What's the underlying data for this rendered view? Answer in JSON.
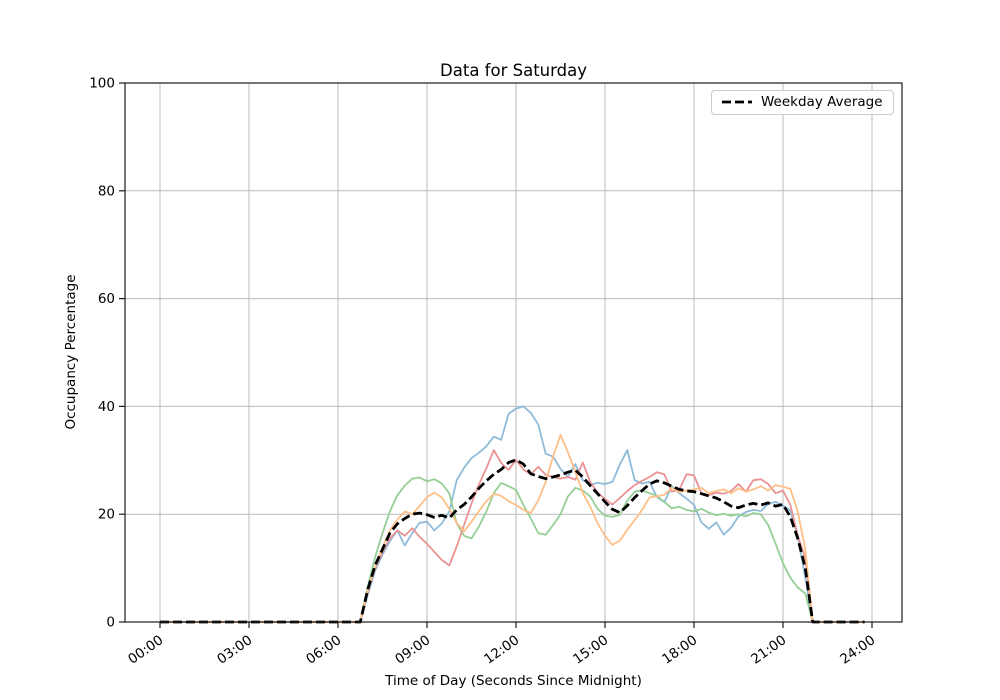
{
  "chart_data": {
    "type": "line",
    "title": "Data for Saturday",
    "xlabel": "Time of Day (Seconds Since Midnight)",
    "ylabel": "Occupancy Percentage",
    "grid": true,
    "ylim": [
      0,
      100
    ],
    "yticks": [
      0,
      20,
      40,
      60,
      80,
      100
    ],
    "x_tick_hours": [
      0,
      3,
      6,
      9,
      12,
      15,
      18,
      21,
      24
    ],
    "x_tick_labels": [
      "00:00",
      "03:00",
      "06:00",
      "09:00",
      "12:00",
      "15:00",
      "18:00",
      "21:00",
      "24:00"
    ],
    "x_start_hour": 0,
    "x_step_minutes": 15,
    "legend": {
      "position": "upper right",
      "entries": [
        "Weekday Average"
      ]
    },
    "colors": {
      "grid": "#bbbbbb",
      "spine": "#1a1a1a",
      "average": "#000000",
      "blue": "#8fbbda",
      "orange": "#ffbf86",
      "green": "#95cf95",
      "red": "#ea9394"
    },
    "series": [
      {
        "name": "saturday-blue",
        "color": "#8fbbda",
        "style": "solid",
        "values": [
          0,
          0,
          0,
          0,
          0,
          0,
          0,
          0,
          0,
          0,
          0,
          0,
          0,
          0,
          0,
          0,
          0,
          0,
          0,
          0,
          0,
          0,
          0,
          0,
          0,
          0,
          0,
          0,
          5,
          9.5,
          12.5,
          15,
          17,
          14.2,
          16.5,
          18.4,
          18.6,
          17,
          18.3,
          20.5,
          26.3,
          28.6,
          30.4,
          31.4,
          32.6,
          34.4,
          33.8,
          38.6,
          39.6,
          40,
          38.8,
          36.6,
          31.2,
          30.7,
          28.4,
          27,
          29.3,
          26.3,
          25.5,
          25.8,
          25.6,
          26,
          29.2,
          31.9,
          26.3,
          25.7,
          26,
          23.2,
          22.2,
          25.2,
          23.9,
          22.9,
          21.7,
          18.5,
          17.3,
          18.5,
          16.2,
          17.5,
          19.6,
          20.4,
          20.8,
          20.6,
          21.9,
          22.3,
          21.6,
          20.7,
          15.8,
          8.2,
          0,
          0,
          0,
          0,
          0,
          0,
          0,
          0
        ]
      },
      {
        "name": "saturday-green",
        "color": "#95cf95",
        "style": "solid",
        "values": [
          0,
          0,
          0,
          0,
          0,
          0,
          0,
          0,
          0,
          0,
          0,
          0,
          0,
          0,
          0,
          0,
          0,
          0,
          0,
          0,
          0,
          0,
          0,
          0,
          0,
          0,
          0,
          0,
          6.5,
          12,
          16.5,
          20.5,
          23.5,
          25.3,
          26.6,
          26.8,
          26.1,
          26.5,
          25.7,
          23.9,
          18.3,
          16,
          15.5,
          17.7,
          20.5,
          23.9,
          25.8,
          25.2,
          24.5,
          21.7,
          19.2,
          16.5,
          16.2,
          18,
          20,
          23.3,
          24.9,
          24.4,
          23.3,
          21,
          19.7,
          19.5,
          19.9,
          22.5,
          24.2,
          24.4,
          23.9,
          23.4,
          22.3,
          21.1,
          21.4,
          20.8,
          20.5,
          21,
          20.3,
          19.8,
          20.1,
          19.7,
          20,
          19.6,
          20.2,
          20,
          18,
          14.5,
          10.9,
          8.2,
          6.4,
          5.3,
          0,
          0,
          0,
          0,
          0,
          0,
          0,
          0
        ]
      },
      {
        "name": "saturday-red",
        "color": "#ea9394",
        "style": "solid",
        "values": [
          0,
          0,
          0,
          0,
          0,
          0,
          0,
          0,
          0,
          0,
          0,
          0,
          0,
          0,
          0,
          0,
          0,
          0,
          0,
          0,
          0,
          0,
          0,
          0,
          0,
          0,
          0,
          0,
          5.5,
          10,
          13,
          15.5,
          17,
          16,
          17.4,
          15.8,
          14.5,
          13,
          11.5,
          10.5,
          14,
          18,
          22,
          25.5,
          28.5,
          31.9,
          29.5,
          28.2,
          30.1,
          28.3,
          27.4,
          28.8,
          27.3,
          26.9,
          26.6,
          26.9,
          26.4,
          29.6,
          26,
          24,
          22.8,
          21.8,
          23,
          24.3,
          25.4,
          26.2,
          26.9,
          27.8,
          27.4,
          24.2,
          24.5,
          27.4,
          27.2,
          23.9,
          23.5,
          24,
          23.8,
          24.3,
          25.6,
          24.2,
          26.3,
          26.5,
          25.6,
          23.9,
          24.4,
          21.7,
          16,
          11.8,
          0,
          0,
          0,
          0,
          0,
          0,
          0,
          0
        ]
      },
      {
        "name": "saturday-orange",
        "color": "#ffbf86",
        "style": "solid",
        "values": [
          0,
          0,
          0,
          0,
          0,
          0,
          0,
          0,
          0,
          0,
          0,
          0,
          0,
          0,
          0,
          0,
          0,
          0,
          0,
          0,
          0,
          0,
          0,
          0,
          0,
          0,
          0,
          0,
          5.8,
          10.2,
          13.8,
          17,
          19,
          20.5,
          20,
          21.5,
          23.2,
          24,
          23.1,
          21,
          18.4,
          16.8,
          18.6,
          20.6,
          22.4,
          23.8,
          23.4,
          22.4,
          21.7,
          20.8,
          20.2,
          22.6,
          26,
          30.7,
          34.7,
          31.5,
          27.9,
          23.9,
          21.4,
          18.3,
          16,
          14.3,
          15.1,
          17.1,
          18.9,
          20.8,
          23.1,
          23.3,
          23.6,
          24.9,
          24.1,
          24.4,
          24.6,
          24.9,
          23.9,
          24.3,
          24.6,
          23.9,
          24.8,
          24.2,
          24.6,
          25.2,
          24.4,
          25.4,
          25.1,
          24.7,
          20.4,
          13.5,
          0,
          0,
          0,
          0,
          0,
          0,
          0,
          0
        ]
      },
      {
        "name": "Weekday Average",
        "color": "#000000",
        "style": "dashed",
        "values": [
          0,
          0,
          0,
          0,
          0,
          0,
          0,
          0,
          0,
          0,
          0,
          0,
          0,
          0,
          0,
          0,
          0,
          0,
          0,
          0,
          0,
          0,
          0,
          0,
          0,
          0,
          0,
          0,
          6,
          10.5,
          13.5,
          16.5,
          18.2,
          19.2,
          20,
          20.2,
          19.9,
          19.4,
          19.8,
          19.3,
          20.8,
          21.8,
          23.2,
          24.8,
          26.2,
          27.4,
          28.3,
          29.6,
          30.1,
          29.3,
          27.5,
          27,
          26.6,
          26.9,
          27.3,
          27.8,
          28.2,
          26.9,
          25.3,
          23.8,
          22.3,
          20.9,
          20.3,
          21.6,
          23.1,
          24.4,
          25.6,
          26.2,
          25.8,
          25.2,
          24.6,
          24.3,
          24.2,
          23.8,
          23.4,
          23,
          22.3,
          21.5,
          21.2,
          21.7,
          22,
          21.7,
          22.1,
          21.5,
          21.8,
          19.5,
          15.5,
          10,
          0,
          0,
          0,
          0,
          0,
          0,
          0,
          0
        ]
      }
    ]
  }
}
